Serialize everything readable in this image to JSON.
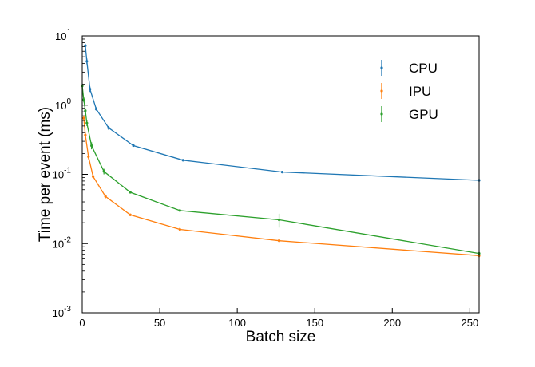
{
  "chart_data": {
    "type": "line",
    "title": "",
    "xlabel": "Batch size",
    "ylabel": "Time per event (ms)",
    "xlim": [
      0,
      256
    ],
    "ylim": [
      0.001,
      10
    ],
    "yscale": "log",
    "xticks": [
      0,
      50,
      100,
      150,
      200,
      250
    ],
    "xtick_labels": [
      "0",
      "50",
      "100",
      "150",
      "200",
      "250"
    ],
    "yticks": [
      0.001,
      0.01,
      0.1,
      1,
      10
    ],
    "ytick_base": [
      "10",
      "10",
      "10",
      "10",
      "10"
    ],
    "ytick_exp": [
      "-3",
      "-2",
      "-1",
      "0",
      "1"
    ],
    "grid": false,
    "legend_position": "top-right",
    "series": [
      {
        "name": "CPU",
        "color": "#1f77b4",
        "x": [
          2,
          3,
          5,
          9,
          17,
          33,
          65,
          129,
          256
        ],
        "y": [
          7.2,
          4.3,
          1.7,
          0.88,
          0.47,
          0.26,
          0.16,
          0.108,
          0.082
        ],
        "err_low": [
          0.5,
          0.4,
          0.15,
          0.05,
          0.03,
          0.01,
          0.006,
          0.004,
          0.002
        ],
        "err_high": [
          0.5,
          0.4,
          0.15,
          0.05,
          0.03,
          0.01,
          0.006,
          0.004,
          0.002
        ]
      },
      {
        "name": "IPU",
        "color": "#ff7f0e",
        "x": [
          1,
          2,
          4,
          7,
          15,
          31,
          63,
          127,
          256
        ],
        "y": [
          0.65,
          0.37,
          0.18,
          0.093,
          0.048,
          0.026,
          0.016,
          0.011,
          0.0067
        ],
        "err_low": [
          0.06,
          0.04,
          0.015,
          0.006,
          0.003,
          0.001,
          0.001,
          0.0008,
          0.0004
        ],
        "err_high": [
          0.06,
          0.04,
          0.015,
          0.006,
          0.003,
          0.001,
          0.001,
          0.0008,
          0.0004
        ]
      },
      {
        "name": "GPU",
        "color": "#2ca02c",
        "x": [
          0,
          1,
          2,
          3,
          6,
          14,
          31,
          63,
          127,
          256
        ],
        "y": [
          1.9,
          1.2,
          0.83,
          0.55,
          0.26,
          0.11,
          0.055,
          0.03,
          0.022,
          0.0072
        ],
        "err_low": [
          0.15,
          0.1,
          0.06,
          0.05,
          0.03,
          0.01,
          0.002,
          0.001,
          0.005,
          0.0004
        ],
        "err_high": [
          0.15,
          0.1,
          0.06,
          0.05,
          0.03,
          0.01,
          0.002,
          0.001,
          0.005,
          0.0004
        ]
      }
    ]
  }
}
